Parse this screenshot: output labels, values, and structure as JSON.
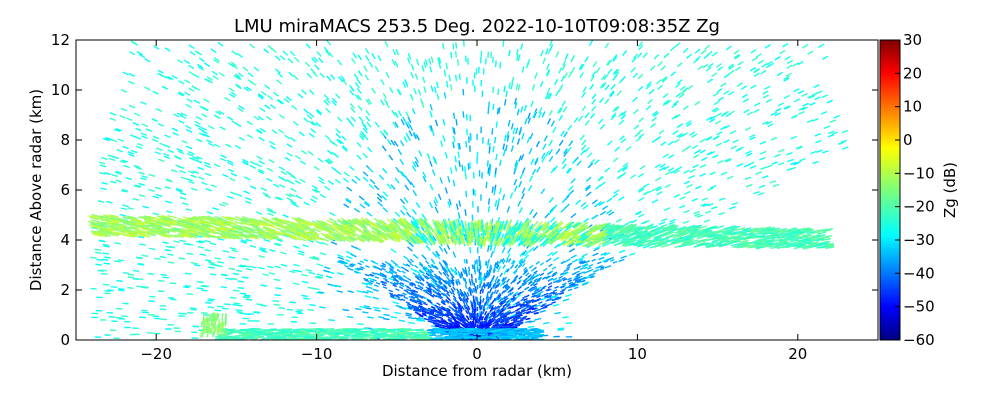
{
  "chart_data": {
    "type": "heatmap",
    "title": "LMU miraMACS 253.5 Deg. 2022-10-10T09:08:35Z  Zg",
    "xlabel": "Distance from radar (km)",
    "ylabel": "Distance Above radar  (km)",
    "xlim": [
      -25,
      25
    ],
    "ylim": [
      0,
      12
    ],
    "x_ticks": [
      -20,
      -10,
      0,
      10,
      20
    ],
    "x_tick_labels": [
      "−20",
      "−10",
      "0",
      "10",
      "20"
    ],
    "y_ticks": [
      0,
      2,
      4,
      6,
      8,
      10,
      12
    ],
    "y_tick_labels": [
      "0",
      "2",
      "4",
      "6",
      "8",
      "10",
      "12"
    ],
    "colorbar": {
      "label": "Zg (dB)",
      "colormap": "jet",
      "range": [
        -60,
        30
      ],
      "ticks": [
        -60,
        -50,
        -40,
        -30,
        -20,
        -10,
        0,
        10,
        20,
        30
      ],
      "tick_labels": [
        "−60",
        "−50",
        "−40",
        "−30",
        "−20",
        "−10",
        "0",
        "10",
        "20",
        "30"
      ]
    },
    "features": [
      {
        "name": "melting layer band",
        "height_km": [
          4.0,
          4.8
        ],
        "x_range_km": [
          -24,
          22
        ],
        "zg_db": -12
      },
      {
        "name": "sparse echoes aloft",
        "height_km": [
          0,
          12
        ],
        "zg_db": -25
      },
      {
        "name": "near-radar clutter cone",
        "height_km": [
          0,
          2.5
        ],
        "x_range_km": [
          -5,
          5
        ],
        "zg_db": -45
      },
      {
        "name": "surface return",
        "height_km": [
          0,
          0.4
        ],
        "x_range_km": [
          -16,
          4
        ],
        "zg_db": -22
      }
    ],
    "grid": false,
    "legend": "colorbar-right"
  }
}
